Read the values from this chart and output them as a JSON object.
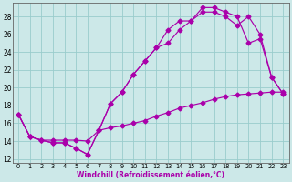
{
  "xlabel": "Windchill (Refroidissement éolien,°C)",
  "bg_color": "#cce8e8",
  "line_color": "#aa00aa",
  "grid_color": "#99cccc",
  "axis_color": "#666666",
  "xlim": [
    -0.5,
    23.5
  ],
  "ylim": [
    11.5,
    29.5
  ],
  "yticks": [
    12,
    14,
    16,
    18,
    20,
    22,
    24,
    26,
    28
  ],
  "xticks": [
    0,
    1,
    2,
    3,
    4,
    5,
    6,
    7,
    8,
    9,
    10,
    11,
    12,
    13,
    14,
    15,
    16,
    17,
    18,
    19,
    20,
    21,
    22,
    23
  ],
  "line1_x": [
    0,
    1,
    2,
    3,
    4,
    5,
    6,
    7,
    8,
    9,
    10,
    11,
    12,
    13,
    14,
    15,
    16,
    17,
    18,
    19,
    20,
    21,
    22,
    23
  ],
  "line1_y": [
    17.0,
    14.5,
    14.1,
    13.8,
    13.8,
    13.2,
    12.5,
    15.2,
    18.2,
    19.5,
    21.5,
    23.0,
    24.5,
    25.0,
    26.5,
    27.5,
    28.5,
    28.5,
    28.0,
    27.0,
    28.0,
    26.0,
    21.2,
    19.3
  ],
  "line2_x": [
    0,
    1,
    2,
    3,
    4,
    5,
    6,
    7,
    8,
    9,
    10,
    11,
    12,
    13,
    14,
    15,
    16,
    17,
    18,
    19,
    20,
    21,
    22,
    23
  ],
  "line2_y": [
    17.0,
    14.5,
    14.1,
    13.8,
    13.8,
    13.2,
    12.5,
    15.2,
    18.2,
    19.5,
    21.5,
    23.0,
    24.5,
    26.5,
    27.5,
    27.5,
    29.0,
    29.0,
    28.5,
    28.0,
    25.0,
    25.5,
    21.2,
    19.3
  ],
  "line3_x": [
    0,
    1,
    2,
    3,
    4,
    5,
    6,
    7,
    8,
    9,
    10,
    11,
    12,
    13,
    14,
    15,
    16,
    17,
    18,
    19,
    20,
    21,
    22,
    23
  ],
  "line3_y": [
    17.0,
    14.5,
    14.1,
    14.1,
    14.1,
    14.1,
    14.0,
    15.2,
    15.5,
    15.7,
    16.0,
    16.3,
    16.8,
    17.2,
    17.7,
    18.0,
    18.3,
    18.7,
    19.0,
    19.2,
    19.3,
    19.4,
    19.5,
    19.5
  ]
}
